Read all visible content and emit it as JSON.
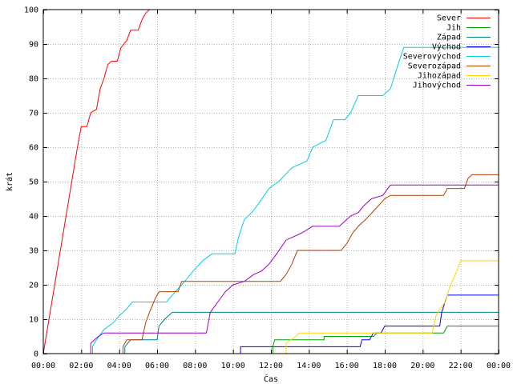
{
  "chart_data": {
    "type": "line",
    "title": "",
    "xlabel": "Čas",
    "ylabel": "krát",
    "xlim": [
      0,
      24
    ],
    "ylim": [
      0,
      100
    ],
    "grid": true,
    "legend_position": "top-right",
    "x_ticks": [
      0,
      2,
      4,
      6,
      8,
      10,
      12,
      14,
      16,
      18,
      20,
      22,
      24
    ],
    "x_tick_labels": [
      "00:00",
      "02:00",
      "04:00",
      "06:00",
      "08:00",
      "10:00",
      "12:00",
      "14:00",
      "16:00",
      "18:00",
      "20:00",
      "22:00",
      "00:00"
    ],
    "y_ticks": [
      0,
      10,
      20,
      30,
      40,
      50,
      60,
      70,
      80,
      90,
      100
    ],
    "y_tick_labels": [
      "0",
      "10",
      "20",
      "30",
      "40",
      "50",
      "60",
      "70",
      "80",
      "90",
      "100"
    ],
    "series": [
      {
        "name": "Sever",
        "color": "#ff0000",
        "points": [
          [
            0,
            0
          ],
          [
            0.3,
            10
          ],
          [
            0.6,
            20
          ],
          [
            0.9,
            30
          ],
          [
            1.2,
            40
          ],
          [
            1.5,
            50
          ],
          [
            1.8,
            60
          ],
          [
            2.0,
            66
          ],
          [
            2.3,
            66
          ],
          [
            2.5,
            70
          ],
          [
            2.8,
            71
          ],
          [
            3.0,
            77
          ],
          [
            3.2,
            80
          ],
          [
            3.4,
            84
          ],
          [
            3.6,
            85
          ],
          [
            3.9,
            85
          ],
          [
            4.1,
            89
          ],
          [
            4.4,
            91
          ],
          [
            4.6,
            94
          ],
          [
            5.0,
            94
          ],
          [
            5.2,
            97
          ],
          [
            5.4,
            99
          ],
          [
            5.6,
            100
          ]
        ]
      },
      {
        "name": "Jih",
        "color": "#00a000",
        "points": [
          [
            12.1,
            0
          ],
          [
            12.1,
            2
          ],
          [
            12.2,
            4
          ],
          [
            14.8,
            4
          ],
          [
            14.8,
            5
          ],
          [
            17.4,
            5
          ],
          [
            17.6,
            6
          ],
          [
            21.1,
            6
          ],
          [
            21.3,
            8
          ],
          [
            24,
            8
          ]
        ]
      },
      {
        "name": "Západ",
        "color": "#008080",
        "points": [
          [
            4.3,
            0
          ],
          [
            4.3,
            2
          ],
          [
            4.6,
            4
          ],
          [
            6.0,
            4
          ],
          [
            6.1,
            8
          ],
          [
            6.4,
            10
          ],
          [
            6.6,
            11
          ],
          [
            6.8,
            12
          ],
          [
            24,
            12
          ]
        ]
      },
      {
        "name": "Východ",
        "color": "#0000ff",
        "points": [
          [
            10.4,
            0
          ],
          [
            10.4,
            2
          ],
          [
            16.7,
            2
          ],
          [
            16.8,
            4
          ],
          [
            17.2,
            4
          ],
          [
            17.4,
            6
          ],
          [
            17.8,
            6
          ],
          [
            18.0,
            8
          ],
          [
            20.9,
            8
          ],
          [
            21.0,
            12
          ],
          [
            21.3,
            17
          ],
          [
            24,
            17
          ]
        ]
      },
      {
        "name": "Severovýchod",
        "color": "#00d0e0",
        "points": [
          [
            2.6,
            0
          ],
          [
            2.6,
            2
          ],
          [
            2.8,
            4
          ],
          [
            3.2,
            7
          ],
          [
            3.7,
            9
          ],
          [
            4.0,
            11
          ],
          [
            4.4,
            13
          ],
          [
            4.7,
            15
          ],
          [
            6.5,
            15
          ],
          [
            6.8,
            17
          ],
          [
            7.3,
            20
          ],
          [
            7.6,
            22
          ],
          [
            7.9,
            24
          ],
          [
            8.4,
            27
          ],
          [
            8.9,
            29
          ],
          [
            10.1,
            29
          ],
          [
            10.3,
            34
          ],
          [
            10.6,
            39
          ],
          [
            11.0,
            41
          ],
          [
            11.4,
            44
          ],
          [
            11.9,
            48
          ],
          [
            12.4,
            50
          ],
          [
            13.1,
            54
          ],
          [
            13.9,
            56
          ],
          [
            14.2,
            60
          ],
          [
            14.9,
            62
          ],
          [
            15.3,
            68
          ],
          [
            15.9,
            68
          ],
          [
            16.2,
            70
          ],
          [
            16.6,
            75
          ],
          [
            17.9,
            75
          ],
          [
            18.3,
            77
          ],
          [
            18.7,
            84
          ],
          [
            19.0,
            89
          ],
          [
            24,
            89
          ]
        ]
      },
      {
        "name": "Severozápad",
        "color": "#b04000",
        "points": [
          [
            4.2,
            0
          ],
          [
            4.2,
            2
          ],
          [
            4.4,
            4
          ],
          [
            5.2,
            4
          ],
          [
            5.4,
            9
          ],
          [
            5.6,
            12
          ],
          [
            5.9,
            16
          ],
          [
            6.1,
            18
          ],
          [
            7.1,
            18
          ],
          [
            7.3,
            21
          ],
          [
            12.5,
            21
          ],
          [
            12.8,
            23
          ],
          [
            13.1,
            26
          ],
          [
            13.4,
            30
          ],
          [
            15.7,
            30
          ],
          [
            16.0,
            32
          ],
          [
            16.3,
            35
          ],
          [
            16.6,
            37
          ],
          [
            17.0,
            39
          ],
          [
            17.5,
            42
          ],
          [
            18.0,
            45
          ],
          [
            18.3,
            46
          ],
          [
            21.1,
            46
          ],
          [
            21.3,
            48
          ],
          [
            22.2,
            48
          ],
          [
            22.4,
            51
          ],
          [
            22.6,
            52
          ],
          [
            24,
            52
          ]
        ]
      },
      {
        "name": "Jihozápad",
        "color": "#ffd700",
        "points": [
          [
            12.8,
            0
          ],
          [
            12.8,
            3
          ],
          [
            13.3,
            5
          ],
          [
            13.5,
            6
          ],
          [
            20.5,
            6
          ],
          [
            20.7,
            11
          ],
          [
            20.9,
            13
          ],
          [
            21.2,
            15
          ],
          [
            21.4,
            19
          ],
          [
            21.8,
            24
          ],
          [
            22.0,
            27
          ],
          [
            24,
            27
          ]
        ]
      },
      {
        "name": "Jihovýchod",
        "color": "#a000c0",
        "points": [
          [
            2.5,
            0
          ],
          [
            2.5,
            3
          ],
          [
            2.9,
            5
          ],
          [
            3.2,
            6
          ],
          [
            8.6,
            6
          ],
          [
            8.8,
            12
          ],
          [
            9.2,
            15
          ],
          [
            9.6,
            18
          ],
          [
            10.0,
            20
          ],
          [
            10.6,
            21
          ],
          [
            11.1,
            23
          ],
          [
            11.5,
            24
          ],
          [
            11.9,
            26
          ],
          [
            12.3,
            29
          ],
          [
            12.8,
            33
          ],
          [
            13.2,
            34
          ],
          [
            13.6,
            35
          ],
          [
            14.2,
            37
          ],
          [
            15.6,
            37
          ],
          [
            15.8,
            38
          ],
          [
            16.2,
            40
          ],
          [
            16.6,
            41
          ],
          [
            16.9,
            43
          ],
          [
            17.3,
            45
          ],
          [
            17.9,
            46
          ],
          [
            18.3,
            49
          ],
          [
            24,
            49
          ]
        ]
      }
    ]
  }
}
